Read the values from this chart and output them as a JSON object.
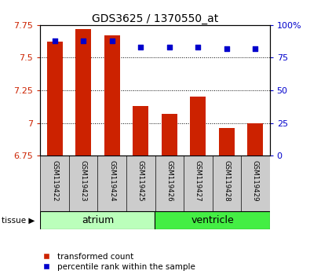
{
  "title": "GDS3625 / 1370550_at",
  "samples": [
    "GSM119422",
    "GSM119423",
    "GSM119424",
    "GSM119425",
    "GSM119426",
    "GSM119427",
    "GSM119428",
    "GSM119429"
  ],
  "transformed_counts": [
    7.62,
    7.72,
    7.67,
    7.13,
    7.07,
    7.2,
    6.96,
    7.0
  ],
  "percentile_ranks": [
    88,
    88,
    88,
    83,
    83,
    83,
    82,
    82
  ],
  "ylim_left": [
    6.75,
    7.75
  ],
  "ylim_right": [
    0,
    100
  ],
  "yticks_left": [
    6.75,
    7.0,
    7.25,
    7.5,
    7.75
  ],
  "ytick_labels_left": [
    "6.75",
    "7",
    "7.25",
    "7.5",
    "7.75"
  ],
  "yticks_right": [
    0,
    25,
    50,
    75,
    100
  ],
  "ytick_labels_right": [
    "0",
    "25",
    "50",
    "75",
    "100%"
  ],
  "bar_color": "#cc2200",
  "marker_color": "#0000cc",
  "bar_bottom": 6.75,
  "atrium_color": "#bbffbb",
  "ventricle_color": "#44ee44",
  "tick_area_bg": "#cccccc",
  "bg_color": "#ffffff",
  "bar_width": 0.55,
  "legend_items": [
    {
      "label": "transformed count",
      "color": "#cc2200"
    },
    {
      "label": "percentile rank within the sample",
      "color": "#0000cc"
    }
  ]
}
